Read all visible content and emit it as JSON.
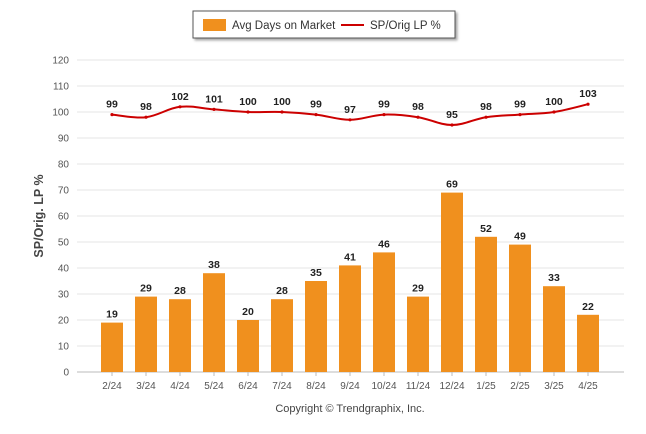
{
  "chart_data": {
    "type": "bar",
    "categories": [
      "2/24",
      "3/24",
      "4/24",
      "5/24",
      "6/24",
      "7/24",
      "8/24",
      "9/24",
      "10/24",
      "11/24",
      "12/24",
      "1/25",
      "2/25",
      "3/25",
      "4/25"
    ],
    "series": [
      {
        "name": "Avg Days on Market",
        "type": "bar",
        "color": "#f0901e",
        "values": [
          19,
          29,
          28,
          38,
          20,
          28,
          35,
          41,
          46,
          29,
          69,
          52,
          49,
          33,
          22
        ]
      },
      {
        "name": "SP/Orig LP %",
        "type": "line",
        "color": "#cc0000",
        "values": [
          99,
          98,
          102,
          101,
          100,
          100,
          99,
          97,
          99,
          98,
          95,
          98,
          99,
          100,
          103
        ]
      }
    ],
    "ylabel": "SP/Orig. LP %",
    "ylim": [
      0,
      120
    ],
    "yticks": [
      0,
      10,
      20,
      30,
      40,
      50,
      60,
      70,
      80,
      90,
      100,
      110,
      120
    ],
    "grid": true,
    "legend_position": "top-center"
  },
  "footer": {
    "copyright": "Copyright © Trendgraphix, Inc."
  }
}
